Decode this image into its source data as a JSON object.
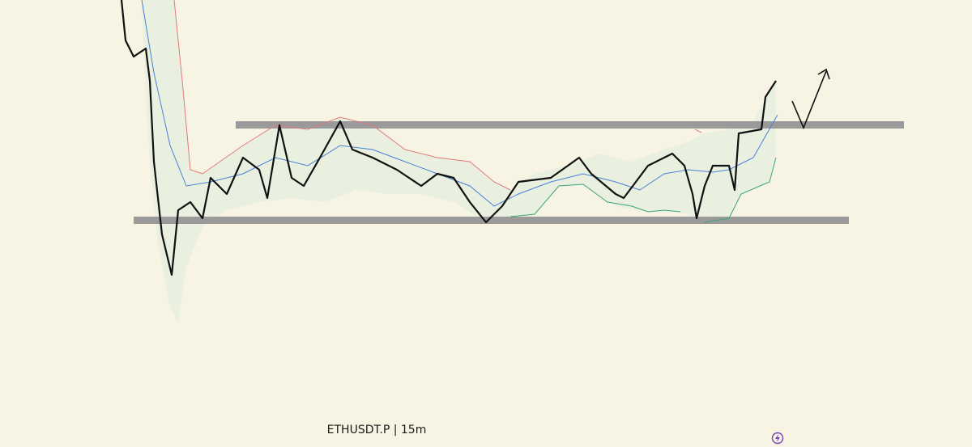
{
  "caption": "ETHUSDT.P | 15m"
}
